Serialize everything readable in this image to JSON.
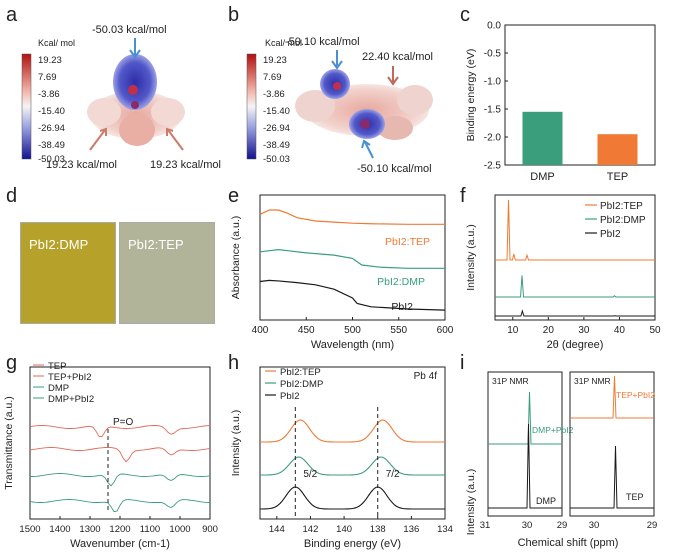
{
  "panels": {
    "a": {
      "letter": "a",
      "colorbar_unit": "Kcal/ mol",
      "colorbar_ticks": [
        "19.23",
        "7.69",
        "-3.86",
        "-15.40",
        "-26.94",
        "-38.49",
        "-50.03"
      ],
      "top_annotation": "-50.03 kcal/mol",
      "left_annotation": "19.23 kcal/mol",
      "right_annotation": "19.23 kcal/mol"
    },
    "b": {
      "letter": "b",
      "colorbar_unit": "Kcal/ mol",
      "colorbar_ticks": [
        "19.23",
        "7.69",
        "-3.86",
        "-15.40",
        "-26.94",
        "-38.49",
        "-50.03"
      ],
      "top_left_annotation": "-50.10 kcal/mol",
      "top_right_annotation": "22.40 kcal/mol",
      "bottom_annotation": "-50.10 kcal/mol"
    },
    "d": {
      "letter": "d",
      "sample1": "PbI2:DMP",
      "sample2": "PbI2:TEP"
    },
    "e": {
      "letter": "e",
      "labels": [
        "PbI2:TEP",
        "PbI2:DMP",
        "PbI2"
      ]
    },
    "f": {
      "letter": "f",
      "legend": [
        "PbI2:TEP",
        "PbI2:DMP",
        "PbI2"
      ]
    },
    "g": {
      "letter": "g",
      "legend": [
        "TEP",
        "TEP+PbI2",
        "DMP",
        "DMP+PbI2"
      ],
      "annotation": "P=O"
    },
    "h": {
      "letter": "h",
      "legend": [
        "PbI2:TEP",
        "PbI2:DMP",
        "PbI2"
      ],
      "title": "Pb 4f",
      "peak_labels": [
        "5/2",
        "7/2"
      ]
    },
    "i": {
      "letter": "i",
      "ylabel": "Intensity (a.u.)",
      "xlabel": "Chemical shift (ppm)",
      "left": {
        "title": "31P NMR",
        "labels": [
          "DMP+PbI2",
          "DMP"
        ],
        "ticks": [
          "31",
          "30",
          "29"
        ]
      },
      "right": {
        "title": "31P NMR",
        "labels": [
          "TEP+PbI2",
          "TEP"
        ],
        "ticks": [
          "30",
          "29"
        ]
      }
    }
  },
  "colors": {
    "green": "#3a9e7d",
    "orange": "#f07a35",
    "black": "#1a1a1a",
    "red": "#e06a5a"
  },
  "chart_data": [
    {
      "type": "bar",
      "panel": "c",
      "categories": [
        "DMP",
        "TEP"
      ],
      "values": [
        -1.55,
        -1.95
      ],
      "ylabel": "Binding energy (eV)",
      "ylim": [
        0,
        -2.5
      ],
      "yticks": [
        "0.0",
        "-0.5",
        "-1.0",
        "-1.5",
        "-2.0",
        "-2.5"
      ],
      "colors": [
        "#3a9e7d",
        "#f07a35"
      ]
    },
    {
      "type": "line",
      "panel": "e",
      "xlabel": "Wavelength (nm)",
      "ylabel": "Absorbance (a.u.)",
      "xlim": [
        400,
        600
      ],
      "xticks": [
        "400",
        "450",
        "500",
        "550",
        "600"
      ],
      "series": [
        {
          "name": "PbI2:TEP",
          "x": [
            400,
            410,
            420,
            430,
            440,
            460,
            480,
            500,
            520,
            560,
            600
          ],
          "y": [
            0.96,
            1.0,
            1.0,
            0.97,
            0.93,
            0.9,
            0.89,
            0.88,
            0.875,
            0.87,
            0.87
          ]
        },
        {
          "name": "PbI2:DMP",
          "x": [
            400,
            410,
            420,
            430,
            450,
            480,
            500,
            510,
            530,
            560,
            600
          ],
          "y": [
            0.62,
            0.63,
            0.64,
            0.63,
            0.61,
            0.59,
            0.56,
            0.5,
            0.48,
            0.47,
            0.47
          ]
        },
        {
          "name": "PbI2",
          "x": [
            400,
            410,
            420,
            440,
            460,
            480,
            500,
            505,
            520,
            560,
            600
          ],
          "y": [
            0.35,
            0.36,
            0.355,
            0.34,
            0.32,
            0.28,
            0.2,
            0.15,
            0.12,
            0.1,
            0.09
          ]
        }
      ]
    },
    {
      "type": "line",
      "panel": "f",
      "xlabel": "2θ (degree)",
      "ylabel": "Intensity (a.u.)",
      "xlim": [
        5,
        50
      ],
      "xticks": [
        "10",
        "20",
        "30",
        "40",
        "50"
      ],
      "series": [
        {
          "name": "PbI2:TEP",
          "peaks": [
            [
              8.8,
              1.0
            ],
            [
              14.0,
              0.08
            ],
            [
              10.3,
              0.1
            ]
          ]
        },
        {
          "name": "PbI2:DMP",
          "peaks": [
            [
              12.6,
              0.9
            ],
            [
              38.6,
              0.05
            ]
          ]
        },
        {
          "name": "PbI2",
          "peaks": [
            [
              12.7,
              0.5
            ],
            [
              38.7,
              0.03
            ]
          ]
        }
      ]
    },
    {
      "type": "line",
      "panel": "g",
      "xlabel": "Wavenumber (cm-1)",
      "ylabel": "Transmittance (a.u.)",
      "xlim": [
        1500,
        900
      ],
      "xticks": [
        "1500",
        "1400",
        "1300",
        "1200",
        "1100",
        "1000",
        "900"
      ],
      "series": [
        {
          "name": "TEP",
          "dip": 1265
        },
        {
          "name": "TEP+PbI2",
          "dip": 1180
        },
        {
          "name": "DMP",
          "dip": 1230
        },
        {
          "name": "DMP+PbI2",
          "dip": 1215
        }
      ]
    },
    {
      "type": "line",
      "panel": "h",
      "xlabel": "Binding energy (eV)",
      "ylabel": "Intensity (a.u.)",
      "xlim": [
        145,
        134
      ],
      "xticks": [
        "144",
        "142",
        "140",
        "138",
        "136",
        "134"
      ],
      "series": [
        {
          "name": "PbI2:TEP",
          "peaks": [
            142.6,
            137.7
          ]
        },
        {
          "name": "PbI2:DMP",
          "peaks": [
            142.7,
            137.8
          ]
        },
        {
          "name": "PbI2",
          "peaks": [
            142.9,
            138.0
          ]
        }
      ]
    }
  ]
}
